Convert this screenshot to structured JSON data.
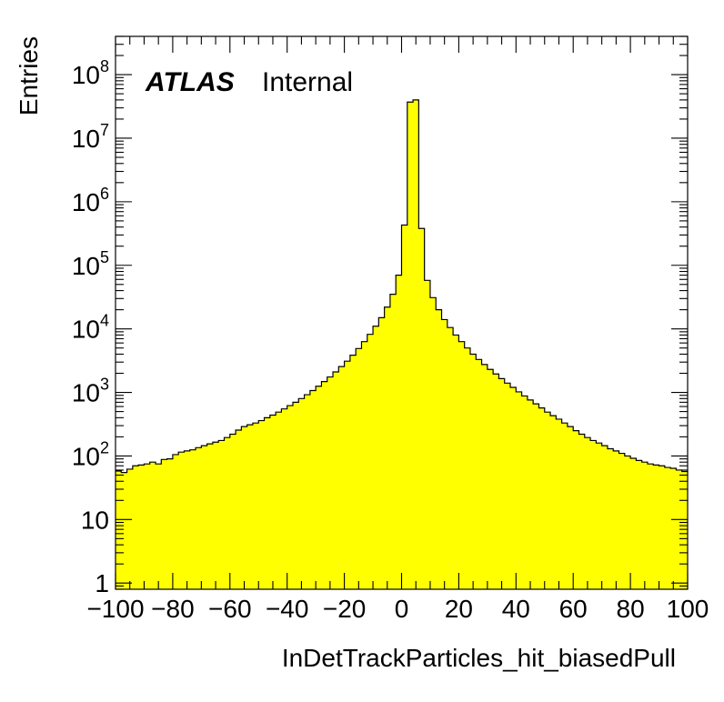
{
  "chart_data": {
    "type": "histogram",
    "xlabel": "InDetTrackParticles_hit_biasedPull",
    "ylabel": "Entries",
    "annotation": {
      "experiment": "ATLAS",
      "status": "Internal"
    },
    "xlim": [
      -100,
      100
    ],
    "ylim": [
      0.8,
      400000000
    ],
    "yscale": "log",
    "bin_width": 2,
    "fill_color": "#ffff00",
    "line_color": "#000000",
    "x_ticks": [
      "−100",
      "−80",
      "−60",
      "−40",
      "−20",
      "0",
      "20",
      "40",
      "60",
      "80",
      "100"
    ],
    "y_ticks": [
      {
        "value": 1,
        "base": "1",
        "exp": ""
      },
      {
        "value": 10,
        "base": "10",
        "exp": ""
      },
      {
        "value": 100,
        "base": "10",
        "exp": "2"
      },
      {
        "value": 1000,
        "base": "10",
        "exp": "3"
      },
      {
        "value": 10000,
        "base": "10",
        "exp": "4"
      },
      {
        "value": 100000,
        "base": "10",
        "exp": "5"
      },
      {
        "value": 1000000,
        "base": "10",
        "exp": "6"
      },
      {
        "value": 10000000,
        "base": "10",
        "exp": "7"
      },
      {
        "value": 100000000,
        "base": "10",
        "exp": "8"
      }
    ],
    "bin_edges_start": -100,
    "values": [
      58,
      55,
      62,
      70,
      72,
      75,
      80,
      75,
      88,
      90,
      105,
      115,
      120,
      125,
      135,
      145,
      155,
      165,
      175,
      195,
      220,
      255,
      290,
      310,
      330,
      360,
      400,
      440,
      490,
      550,
      620,
      700,
      800,
      920,
      1070,
      1250,
      1480,
      1750,
      2100,
      2550,
      3100,
      3850,
      4900,
      6300,
      8200,
      11000,
      15000,
      22000,
      35000,
      70000,
      430000,
      37000000,
      40000000,
      380000,
      58000,
      31000,
      20000,
      14000,
      10500,
      8000,
      6300,
      5000,
      4000,
      3300,
      2750,
      2300,
      1950,
      1650,
      1400,
      1200,
      1020,
      880,
      760,
      660,
      570,
      490,
      430,
      380,
      330,
      290,
      250,
      220,
      195,
      175,
      160,
      145,
      130,
      120,
      110,
      100,
      92,
      85,
      80,
      75,
      72,
      70,
      66,
      64,
      60,
      57
    ]
  }
}
